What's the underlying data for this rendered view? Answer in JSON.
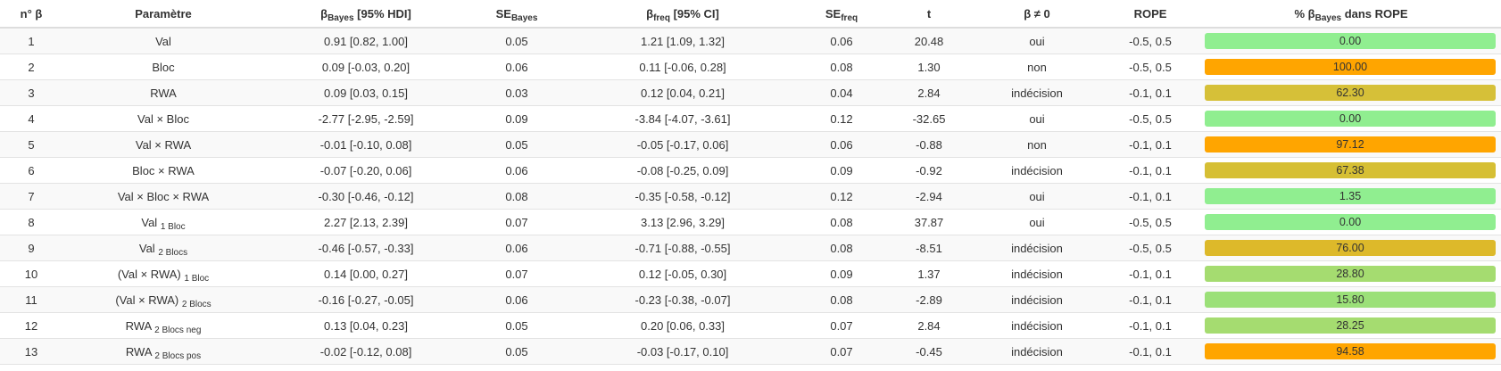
{
  "headers": [
    {
      "text": "n° β",
      "sub": "",
      "tail": ""
    },
    {
      "text": "Paramètre",
      "sub": "",
      "tail": ""
    },
    {
      "text": "β",
      "sub": "Bayes",
      "tail": " [95% HDI]"
    },
    {
      "text": "SE",
      "sub": "Bayes",
      "tail": ""
    },
    {
      "text": "β",
      "sub": "freq",
      "tail": " [95% CI]"
    },
    {
      "text": "SE",
      "sub": "freq",
      "tail": ""
    },
    {
      "text": "t",
      "sub": "",
      "tail": ""
    },
    {
      "text": "β ≠ 0",
      "sub": "",
      "tail": ""
    },
    {
      "text": "ROPE",
      "sub": "",
      "tail": ""
    },
    {
      "text": "% β",
      "sub": "Bayes",
      "tail": " dans ROPE"
    }
  ],
  "rows": [
    {
      "n": "1",
      "param": "Val",
      "param_sub": "",
      "b_bayes": "0.91 [0.82, 1.00]",
      "se_bayes": "0.05",
      "b_freq": "1.21 [1.09, 1.32]",
      "se_freq": "0.06",
      "t": "20.48",
      "decision": "oui",
      "rope": "-0.5, 0.5",
      "pct": "0.00",
      "pct_value": 0.0,
      "pct_color": "#90ee90"
    },
    {
      "n": "2",
      "param": "Bloc",
      "param_sub": "",
      "b_bayes": "0.09 [-0.03, 0.20]",
      "se_bayes": "0.06",
      "b_freq": "0.11 [-0.06, 0.28]",
      "se_freq": "0.08",
      "t": "1.30",
      "decision": "non",
      "rope": "-0.5, 0.5",
      "pct": "100.00",
      "pct_value": 100.0,
      "pct_color": "#ffa500"
    },
    {
      "n": "3",
      "param": "RWA",
      "param_sub": "",
      "b_bayes": "0.09 [0.03, 0.15]",
      "se_bayes": "0.03",
      "b_freq": "0.12 [0.04, 0.21]",
      "se_freq": "0.04",
      "t": "2.84",
      "decision": "indécision",
      "rope": "-0.1, 0.1",
      "pct": "62.30",
      "pct_value": 62.3,
      "pct_color": "#d6c038"
    },
    {
      "n": "4",
      "param": "Val × Bloc",
      "param_sub": "",
      "b_bayes": "-2.77 [-2.95, -2.59]",
      "se_bayes": "0.09",
      "b_freq": "-3.84 [-4.07, -3.61]",
      "se_freq": "0.12",
      "t": "-32.65",
      "decision": "oui",
      "rope": "-0.5, 0.5",
      "pct": "0.00",
      "pct_value": 0.0,
      "pct_color": "#90ee90"
    },
    {
      "n": "5",
      "param": "Val × RWA",
      "param_sub": "",
      "b_bayes": "-0.01 [-0.10, 0.08]",
      "se_bayes": "0.05",
      "b_freq": "-0.05 [-0.17, 0.06]",
      "se_freq": "0.06",
      "t": "-0.88",
      "decision": "non",
      "rope": "-0.1, 0.1",
      "pct": "97.12",
      "pct_value": 97.12,
      "pct_color": "#ffa500"
    },
    {
      "n": "6",
      "param": "Bloc × RWA",
      "param_sub": "",
      "b_bayes": "-0.07 [-0.20, 0.06]",
      "se_bayes": "0.06",
      "b_freq": "-0.08 [-0.25, 0.09]",
      "se_freq": "0.09",
      "t": "-0.92",
      "decision": "indécision",
      "rope": "-0.1, 0.1",
      "pct": "67.38",
      "pct_value": 67.38,
      "pct_color": "#d6bf34"
    },
    {
      "n": "7",
      "param": "Val × Bloc × RWA",
      "param_sub": "",
      "b_bayes": "-0.30 [-0.46, -0.12]",
      "se_bayes": "0.08",
      "b_freq": "-0.35 [-0.58, -0.12]",
      "se_freq": "0.12",
      "t": "-2.94",
      "decision": "oui",
      "rope": "-0.1, 0.1",
      "pct": "1.35",
      "pct_value": 1.35,
      "pct_color": "#90ee90"
    },
    {
      "n": "8",
      "param": "Val",
      "param_sub": "1 Bloc",
      "b_bayes": "2.27 [2.13, 2.39]",
      "se_bayes": "0.07",
      "b_freq": "3.13 [2.96, 3.29]",
      "se_freq": "0.08",
      "t": "37.87",
      "decision": "oui",
      "rope": "-0.5, 0.5",
      "pct": "0.00",
      "pct_value": 0.0,
      "pct_color": "#90ee90"
    },
    {
      "n": "9",
      "param": "Val",
      "param_sub": "2 Blocs",
      "b_bayes": "-0.46 [-0.57, -0.33]",
      "se_bayes": "0.06",
      "b_freq": "-0.71 [-0.88, -0.55]",
      "se_freq": "0.08",
      "t": "-8.51",
      "decision": "indécision",
      "rope": "-0.5, 0.5",
      "pct": "76.00",
      "pct_value": 76.0,
      "pct_color": "#ddb92a"
    },
    {
      "n": "10",
      "param": "(Val × RWA)",
      "param_sub": "1 Bloc",
      "b_bayes": "0.14 [0.00, 0.27]",
      "se_bayes": "0.07",
      "b_freq": "0.12 [-0.05, 0.30]",
      "se_freq": "0.09",
      "t": "1.37",
      "decision": "indécision",
      "rope": "-0.1, 0.1",
      "pct": "28.80",
      "pct_value": 28.8,
      "pct_color": "#a5dc70"
    },
    {
      "n": "11",
      "param": "(Val × RWA)",
      "param_sub": "2 Blocs",
      "b_bayes": "-0.16 [-0.27, -0.05]",
      "se_bayes": "0.06",
      "b_freq": "-0.23 [-0.38, -0.07]",
      "se_freq": "0.08",
      "t": "-2.89",
      "decision": "indécision",
      "rope": "-0.1, 0.1",
      "pct": "15.80",
      "pct_value": 15.8,
      "pct_color": "#9be078"
    },
    {
      "n": "12",
      "param": "RWA",
      "param_sub": "2 Blocs neg",
      "b_bayes": "0.13 [0.04, 0.23]",
      "se_bayes": "0.05",
      "b_freq": "0.20 [0.06, 0.33]",
      "se_freq": "0.07",
      "t": "2.84",
      "decision": "indécision",
      "rope": "-0.1, 0.1",
      "pct": "28.25",
      "pct_value": 28.25,
      "pct_color": "#a5dc70"
    },
    {
      "n": "13",
      "param": "RWA",
      "param_sub": "2 Blocs pos",
      "b_bayes": "-0.02 [-0.12, 0.08]",
      "se_bayes": "0.05",
      "b_freq": "-0.03 [-0.17, 0.10]",
      "se_freq": "0.07",
      "t": "-0.45",
      "decision": "indécision",
      "rope": "-0.1, 0.1",
      "pct": "94.58",
      "pct_value": 94.58,
      "pct_color": "#ffa500"
    }
  ]
}
